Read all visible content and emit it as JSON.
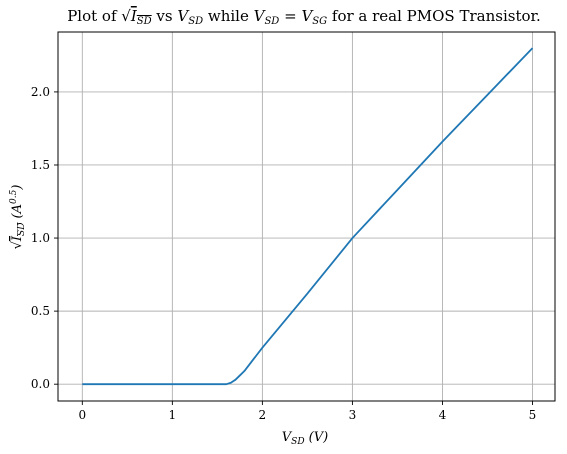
{
  "chart_data": {
    "type": "line",
    "title": "Plot of √I_SD vs V_SD while V_SD = V_SG for a real PMOS Transistor.",
    "title_parts": {
      "prefix": "Plot of ",
      "sqrt": "√",
      "i_main": "I",
      "i_sub": "SD",
      "vs": " vs ",
      "v1_main": "V",
      "v1_sub": "SD",
      "while": " while ",
      "v2_main": "V",
      "v2_sub": "SD",
      "eq": " = ",
      "v3_main": "V",
      "v3_sub": "SG",
      "suffix": " for a real PMOS Transistor."
    },
    "xlabel": "V_SD (V)",
    "xlabel_parts": {
      "main": "V",
      "sub": "SD",
      "unit": " (V)"
    },
    "ylabel": "√I_SD (A^0.5)",
    "ylabel_parts": {
      "sqrt": "√",
      "main": "I",
      "sub": "SD",
      "unit_open": " (A",
      "unit_exp": "0.5",
      "unit_close": ")"
    },
    "xlim": [
      -0.27,
      5.25
    ],
    "ylim": [
      -0.115,
      2.41
    ],
    "xticks": [
      0,
      1,
      2,
      3,
      4,
      5
    ],
    "xtick_labels": [
      "0",
      "1",
      "2",
      "3",
      "4",
      "5"
    ],
    "yticks": [
      0.0,
      0.5,
      1.0,
      1.5,
      2.0
    ],
    "ytick_labels": [
      "0.0",
      "0.5",
      "1.0",
      "1.5",
      "2.0"
    ],
    "grid": true,
    "series": [
      {
        "color": "#1f77b4",
        "x": [
          0,
          0.5,
          1.0,
          1.5,
          1.6,
          1.65,
          1.7,
          1.75,
          1.8,
          1.85,
          1.9,
          1.95,
          2.0,
          2.5,
          3.0,
          3.5,
          4.0,
          4.5,
          5.0
        ],
        "y": [
          0,
          0,
          0,
          0,
          0,
          0.01,
          0.03,
          0.06,
          0.09,
          0.13,
          0.17,
          0.21,
          0.25,
          0.62,
          1.0,
          1.33,
          1.66,
          1.98,
          2.3
        ]
      }
    ]
  }
}
